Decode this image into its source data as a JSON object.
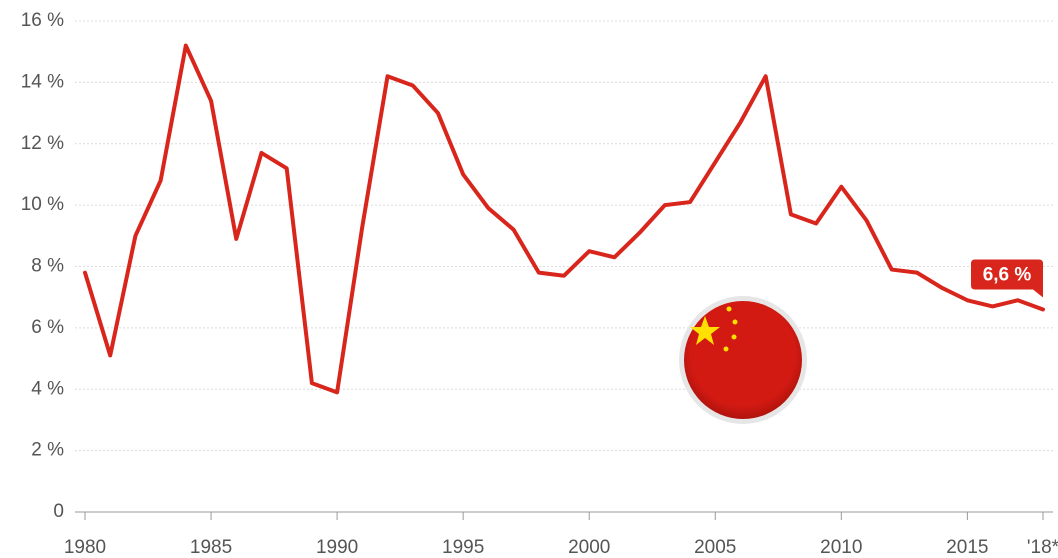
{
  "chart_data": {
    "type": "line",
    "x": [
      1980,
      1981,
      1982,
      1983,
      1984,
      1985,
      1986,
      1987,
      1988,
      1989,
      1990,
      1991,
      1992,
      1993,
      1994,
      1995,
      1996,
      1997,
      1998,
      1999,
      2000,
      2001,
      2002,
      2003,
      2004,
      2005,
      2006,
      2007,
      2008,
      2009,
      2010,
      2011,
      2012,
      2013,
      2014,
      2015,
      2016,
      2017,
      2018
    ],
    "series": [
      {
        "color": "#d9261c",
        "values": [
          7.8,
          5.1,
          9.0,
          10.8,
          15.2,
          13.4,
          8.9,
          11.7,
          11.2,
          4.2,
          3.9,
          9.3,
          14.2,
          13.9,
          13.0,
          11.0,
          9.9,
          9.2,
          7.8,
          7.7,
          8.5,
          8.3,
          9.1,
          10.0,
          10.1,
          11.4,
          12.7,
          14.2,
          9.7,
          9.4,
          10.6,
          9.5,
          7.9,
          7.8,
          7.3,
          6.9,
          6.7,
          6.9,
          6.6
        ],
        "value_labels": [
          null,
          null,
          null,
          null,
          null,
          null,
          null,
          null,
          null,
          null,
          null,
          null,
          null,
          null,
          null,
          null,
          null,
          null,
          null,
          null,
          null,
          null,
          null,
          null,
          null,
          null,
          null,
          null,
          null,
          null,
          null,
          null,
          null,
          null,
          null,
          null,
          null,
          null,
          "6,6 %"
        ]
      }
    ],
    "xlim": [
      1980,
      2018
    ],
    "xticks": [
      1980,
      1985,
      1990,
      1995,
      2000,
      2005,
      2010,
      2015,
      {
        "value": 2018,
        "label": "'18*"
      }
    ],
    "ylim": [
      0,
      16
    ],
    "yticks": [
      0,
      {
        "value": 2,
        "label": "2 %"
      },
      {
        "value": 4,
        "label": "4 %"
      },
      {
        "value": 6,
        "label": "6 %"
      },
      {
        "value": 8,
        "label": "8 %"
      },
      {
        "value": 10,
        "label": "10 %"
      },
      {
        "value": 12,
        "label": "12 %"
      },
      {
        "value": 14,
        "label": "14 %"
      },
      {
        "value": 16,
        "label": "16 %"
      }
    ],
    "grid": true
  }
}
